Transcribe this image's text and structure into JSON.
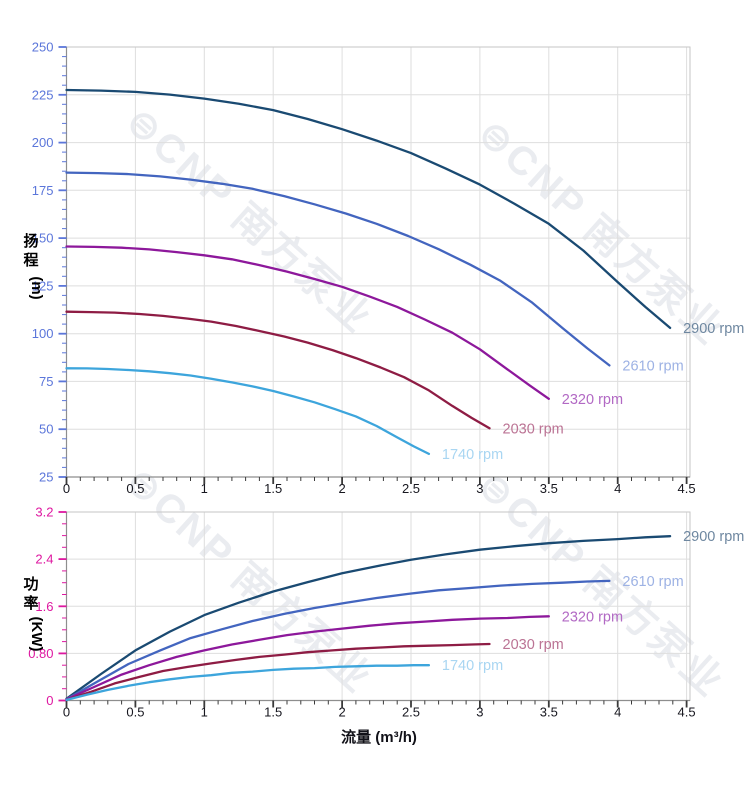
{
  "watermark": {
    "text": "⊜CNP 南方泵业"
  },
  "chart_data": {
    "type": "line",
    "x_axis": {
      "label": "流量 (m³/h)",
      "min": 0,
      "max": 4.5,
      "major_step": 0.5,
      "minor_step": 0.1,
      "tick_labels": [
        "0",
        "0.5",
        "1",
        "1.5",
        "2",
        "2.5",
        "3",
        "3.5",
        "4",
        "4.5"
      ],
      "tick_label_color": "#17171f",
      "tick_color": "#3a3a3a"
    },
    "charts": [
      {
        "id": "head",
        "y_axis": {
          "chars": [
            "扬",
            "程"
          ],
          "unit": "(m)",
          "title_color": "#3a50cf",
          "tick_label_color": "#5b76da",
          "tick_color": "#5b76da",
          "min": 25,
          "max": 250,
          "major_step": 25,
          "minor_step": 5,
          "tick_labels": [
            "250",
            "225",
            "200",
            "175",
            "150",
            "125",
            "100",
            "75",
            "50",
            "25"
          ]
        },
        "grid": true,
        "series": [
          {
            "name": "2900 rpm",
            "color": "#1a4a72",
            "label_color": "#6e87a0",
            "points": [
              [
                0,
                227.5
              ],
              [
                0.25,
                227.2
              ],
              [
                0.5,
                226.5
              ],
              [
                0.75,
                225.1
              ],
              [
                1,
                223
              ],
              [
                1.25,
                220.3
              ],
              [
                1.5,
                217
              ],
              [
                1.75,
                212.3
              ],
              [
                2,
                207
              ],
              [
                2.25,
                201
              ],
              [
                2.5,
                194.5
              ],
              [
                2.75,
                186.5
              ],
              [
                3,
                178
              ],
              [
                3.25,
                168
              ],
              [
                3.5,
                157.5
              ],
              [
                3.75,
                143.5
              ],
              [
                4,
                127
              ],
              [
                4.2,
                114
              ],
              [
                4.38,
                103
              ]
            ]
          },
          {
            "name": "2610 rpm",
            "color": "#4365bf",
            "label_color": "#9db2e4",
            "points": [
              [
                0,
                184.3
              ],
              [
                0.23,
                184
              ],
              [
                0.45,
                183.5
              ],
              [
                0.68,
                182.3
              ],
              [
                0.9,
                180.6
              ],
              [
                1.13,
                178.4
              ],
              [
                1.35,
                175.8
              ],
              [
                1.58,
                172
              ],
              [
                1.8,
                167.7
              ],
              [
                2.03,
                162.8
              ],
              [
                2.25,
                157.5
              ],
              [
                2.48,
                151.1
              ],
              [
                2.7,
                144.2
              ],
              [
                2.93,
                136.1
              ],
              [
                3.15,
                127.6
              ],
              [
                3.38,
                116.2
              ],
              [
                3.6,
                102.9
              ],
              [
                3.78,
                92.3
              ],
              [
                3.94,
                83.4
              ]
            ]
          },
          {
            "name": "2320 rpm",
            "color": "#8d189b",
            "label_color": "#b269c4",
            "points": [
              [
                0,
                145.6
              ],
              [
                0.2,
                145.4
              ],
              [
                0.4,
                145
              ],
              [
                0.6,
                144.1
              ],
              [
                0.8,
                142.7
              ],
              [
                1,
                141
              ],
              [
                1.2,
                138.9
              ],
              [
                1.4,
                135.9
              ],
              [
                1.6,
                132.5
              ],
              [
                1.8,
                128.6
              ],
              [
                2,
                124.5
              ],
              [
                2.2,
                119.4
              ],
              [
                2.4,
                114
              ],
              [
                2.6,
                107.4
              ],
              [
                2.8,
                100.5
              ],
              [
                3,
                91.8
              ],
              [
                3.2,
                81.3
              ],
              [
                3.36,
                73
              ],
              [
                3.5,
                65.9
              ]
            ]
          },
          {
            "name": "2030 rpm",
            "color": "#8e1c44",
            "label_color": "#bb7394",
            "points": [
              [
                0,
                111.5
              ],
              [
                0.18,
                111.3
              ],
              [
                0.35,
                111
              ],
              [
                0.53,
                110.3
              ],
              [
                0.7,
                109.3
              ],
              [
                0.88,
                107.9
              ],
              [
                1.05,
                106.3
              ],
              [
                1.23,
                104
              ],
              [
                1.4,
                101.4
              ],
              [
                1.58,
                98.5
              ],
              [
                1.75,
                95.3
              ],
              [
                1.93,
                91.4
              ],
              [
                2.1,
                87.2
              ],
              [
                2.28,
                82.3
              ],
              [
                2.45,
                77.2
              ],
              [
                2.63,
                70.3
              ],
              [
                2.8,
                62.2
              ],
              [
                2.94,
                55.9
              ],
              [
                3.07,
                50.5
              ]
            ]
          },
          {
            "name": "1740 rpm",
            "color": "#3da5dc",
            "label_color": "#a9d6f2",
            "points": [
              [
                0,
                81.9
              ],
              [
                0.15,
                81.8
              ],
              [
                0.3,
                81.5
              ],
              [
                0.45,
                81
              ],
              [
                0.6,
                80.3
              ],
              [
                0.75,
                79.3
              ],
              [
                0.9,
                78.1
              ],
              [
                1.05,
                76.4
              ],
              [
                1.2,
                74.5
              ],
              [
                1.35,
                72.4
              ],
              [
                1.5,
                70
              ],
              [
                1.65,
                67.1
              ],
              [
                1.8,
                64.1
              ],
              [
                1.95,
                60.5
              ],
              [
                2.1,
                56.7
              ],
              [
                2.25,
                51.7
              ],
              [
                2.4,
                45.7
              ],
              [
                2.52,
                41
              ],
              [
                2.63,
                37.1
              ]
            ]
          }
        ]
      },
      {
        "id": "power",
        "y_axis": {
          "chars": [
            "功",
            "率"
          ],
          "unit": "(KW)",
          "title_color": "#c20a87",
          "tick_label_color": "#de17a0",
          "tick_color": "#de17a0",
          "min": 0,
          "max": 3.2,
          "major_step": 0.8,
          "minor_step": 0.2,
          "tick_labels": [
            "3.2",
            "2.4",
            "1.6",
            "0.80",
            "0"
          ]
        },
        "grid": true,
        "series": [
          {
            "name": "2900 rpm",
            "color": "#1a4a72",
            "label_color": "#6e87a0",
            "points": [
              [
                0,
                0.03
              ],
              [
                0.25,
                0.45
              ],
              [
                0.5,
                0.85
              ],
              [
                0.75,
                1.17
              ],
              [
                1,
                1.45
              ],
              [
                1.25,
                1.66
              ],
              [
                1.5,
                1.85
              ],
              [
                1.75,
                2.01
              ],
              [
                2,
                2.16
              ],
              [
                2.25,
                2.28
              ],
              [
                2.5,
                2.39
              ],
              [
                2.75,
                2.48
              ],
              [
                3,
                2.56
              ],
              [
                3.25,
                2.62
              ],
              [
                3.5,
                2.67
              ],
              [
                3.75,
                2.71
              ],
              [
                4,
                2.74
              ],
              [
                4.2,
                2.77
              ],
              [
                4.38,
                2.79
              ]
            ]
          },
          {
            "name": "2610 rpm",
            "color": "#4365bf",
            "label_color": "#9db2e4",
            "points": [
              [
                0,
                0.02
              ],
              [
                0.23,
                0.33
              ],
              [
                0.45,
                0.62
              ],
              [
                0.68,
                0.85
              ],
              [
                0.9,
                1.06
              ],
              [
                1.13,
                1.21
              ],
              [
                1.35,
                1.35
              ],
              [
                1.58,
                1.47
              ],
              [
                1.8,
                1.57
              ],
              [
                2.03,
                1.66
              ],
              [
                2.25,
                1.74
              ],
              [
                2.48,
                1.81
              ],
              [
                2.7,
                1.87
              ],
              [
                2.93,
                1.91
              ],
              [
                3.15,
                1.95
              ],
              [
                3.38,
                1.98
              ],
              [
                3.6,
                2.0
              ],
              [
                3.78,
                2.02
              ],
              [
                3.94,
                2.03
              ]
            ]
          },
          {
            "name": "2320 rpm",
            "color": "#8d189b",
            "label_color": "#b269c4",
            "points": [
              [
                0,
                0.02
              ],
              [
                0.2,
                0.23
              ],
              [
                0.4,
                0.44
              ],
              [
                0.6,
                0.6
              ],
              [
                0.8,
                0.74
              ],
              [
                1,
                0.85
              ],
              [
                1.2,
                0.95
              ],
              [
                1.4,
                1.03
              ],
              [
                1.6,
                1.11
              ],
              [
                1.8,
                1.17
              ],
              [
                2,
                1.22
              ],
              [
                2.2,
                1.27
              ],
              [
                2.4,
                1.31
              ],
              [
                2.6,
                1.34
              ],
              [
                2.8,
                1.37
              ],
              [
                3,
                1.39
              ],
              [
                3.2,
                1.4
              ],
              [
                3.36,
                1.42
              ],
              [
                3.5,
                1.43
              ]
            ]
          },
          {
            "name": "2030 rpm",
            "color": "#8e1c44",
            "label_color": "#bb7394",
            "points": [
              [
                0,
                0.01
              ],
              [
                0.18,
                0.15
              ],
              [
                0.35,
                0.29
              ],
              [
                0.53,
                0.4
              ],
              [
                0.7,
                0.5
              ],
              [
                0.88,
                0.57
              ],
              [
                1.05,
                0.63
              ],
              [
                1.23,
                0.69
              ],
              [
                1.4,
                0.74
              ],
              [
                1.58,
                0.78
              ],
              [
                1.75,
                0.82
              ],
              [
                1.93,
                0.85
              ],
              [
                2.1,
                0.88
              ],
              [
                2.28,
                0.9
              ],
              [
                2.45,
                0.92
              ],
              [
                2.63,
                0.93
              ],
              [
                2.8,
                0.94
              ],
              [
                2.94,
                0.95
              ],
              [
                3.07,
                0.96
              ]
            ]
          },
          {
            "name": "1740 rpm",
            "color": "#3da5dc",
            "label_color": "#a9d6f2",
            "points": [
              [
                0,
                0.01
              ],
              [
                0.15,
                0.1
              ],
              [
                0.3,
                0.18
              ],
              [
                0.45,
                0.25
              ],
              [
                0.6,
                0.31
              ],
              [
                0.75,
                0.36
              ],
              [
                0.9,
                0.4
              ],
              [
                1.05,
                0.43
              ],
              [
                1.2,
                0.47
              ],
              [
                1.35,
                0.49
              ],
              [
                1.5,
                0.52
              ],
              [
                1.65,
                0.54
              ],
              [
                1.8,
                0.55
              ],
              [
                1.95,
                0.57
              ],
              [
                2.1,
                0.58
              ],
              [
                2.25,
                0.59
              ],
              [
                2.4,
                0.59
              ],
              [
                2.52,
                0.6
              ],
              [
                2.63,
                0.6
              ]
            ]
          }
        ]
      }
    ],
    "style": {
      "grid_color": "#dedede",
      "border_color": "#c6c6c6",
      "axis_line_color": "#8e8e8e"
    }
  }
}
